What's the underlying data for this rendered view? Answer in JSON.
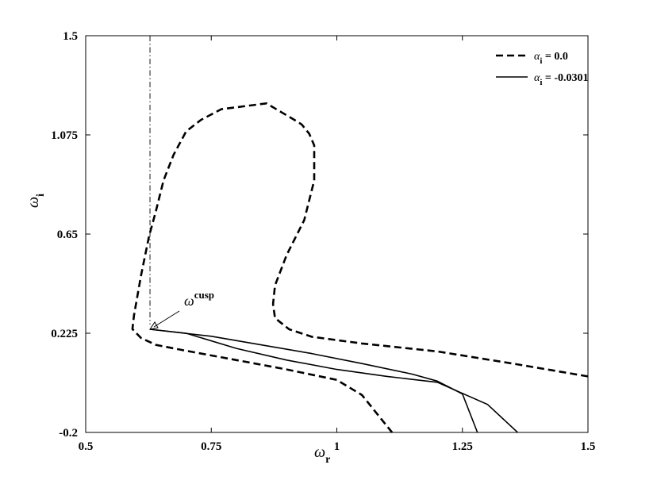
{
  "chart_data": {
    "type": "line",
    "xlabel": "ω",
    "xlabel_sub": "r",
    "ylabel": "ω",
    "ylabel_sub": "i",
    "xlim": [
      0.5,
      1.5
    ],
    "ylim": [
      -0.2,
      1.5
    ],
    "xticks": [
      "0.5",
      "0.75",
      "1",
      "1.25",
      "1.5"
    ],
    "xtick_values": [
      0.5,
      0.75,
      1,
      1.25,
      1.5
    ],
    "yticks": [
      "-0.2",
      "0.225",
      "0.65",
      "1.075",
      "1.5"
    ],
    "ytick_values": [
      -0.2,
      0.225,
      0.65,
      1.075,
      1.5
    ],
    "grid": false,
    "legend_position": "top-right",
    "legend": [
      {
        "symbol": "α",
        "sub": "i",
        "text": " = 0.0",
        "style": "dashed"
      },
      {
        "symbol": "α",
        "sub": "i",
        "text": " = -0.0301",
        "style": "solid"
      }
    ],
    "vertical_line": {
      "x": 0.628,
      "style": "dash-dot"
    },
    "annotation": {
      "text": "ω",
      "sup": "cusp",
      "x": 0.628,
      "y": 0.242
    },
    "series": [
      {
        "style": "dashed",
        "points": [
          [
            1.5,
            0.04
          ],
          [
            1.35,
            0.095
          ],
          [
            1.2,
            0.147
          ],
          [
            1.05,
            0.181
          ],
          [
            0.95,
            0.21
          ],
          [
            0.905,
            0.242
          ],
          [
            0.877,
            0.29
          ],
          [
            0.873,
            0.35
          ],
          [
            0.877,
            0.43
          ],
          [
            0.9,
            0.56
          ],
          [
            0.935,
            0.71
          ],
          [
            0.955,
            0.88
          ],
          [
            0.955,
            1.03
          ],
          [
            0.945,
            1.08
          ],
          [
            0.93,
            1.12
          ],
          [
            0.915,
            1.14
          ],
          [
            0.86,
            1.21
          ],
          [
            0.77,
            1.185
          ],
          [
            0.73,
            1.14
          ],
          [
            0.7,
            1.09
          ],
          [
            0.675,
            0.99
          ],
          [
            0.655,
            0.88
          ],
          [
            0.64,
            0.75
          ],
          [
            0.626,
            0.64
          ],
          [
            0.61,
            0.47
          ],
          [
            0.596,
            0.3
          ],
          [
            0.593,
            0.243
          ],
          [
            0.61,
            0.205
          ],
          [
            0.64,
            0.175
          ],
          [
            0.7,
            0.15
          ],
          [
            0.8,
            0.11
          ],
          [
            0.9,
            0.07
          ],
          [
            1.0,
            0.025
          ],
          [
            1.05,
            -0.04
          ],
          [
            1.11,
            -0.2
          ]
        ]
      },
      {
        "style": "solid",
        "points": [
          [
            0.628,
            0.242
          ],
          [
            0.75,
            0.212
          ],
          [
            0.85,
            0.175
          ],
          [
            0.95,
            0.138
          ],
          [
            1.05,
            0.095
          ],
          [
            1.15,
            0.05
          ],
          [
            1.2,
            0.02
          ],
          [
            1.25,
            -0.035
          ],
          [
            1.28,
            -0.2
          ]
        ]
      },
      {
        "style": "solid",
        "points": [
          [
            0.628,
            0.242
          ],
          [
            0.7,
            0.225
          ],
          [
            0.8,
            0.16
          ],
          [
            0.9,
            0.11
          ],
          [
            1.0,
            0.07
          ],
          [
            1.1,
            0.04
          ],
          [
            1.2,
            0.015
          ],
          [
            1.3,
            -0.08
          ],
          [
            1.36,
            -0.2
          ]
        ]
      }
    ]
  }
}
